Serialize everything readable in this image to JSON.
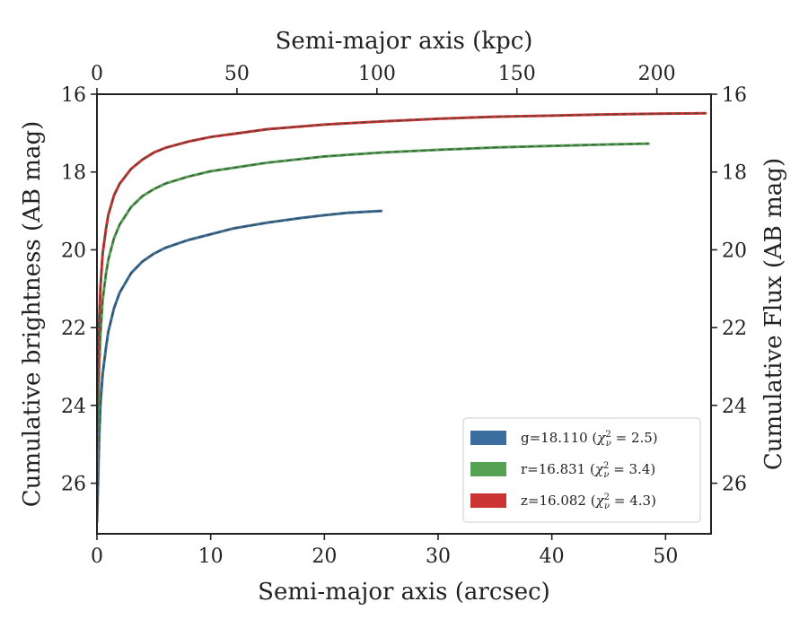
{
  "chart_data": {
    "type": "line",
    "xlabel": "Semi-major axis (arcsec)",
    "xlabel_top": "Semi-major axis (kpc)",
    "ylabel": "Cumulative brightness (AB mag)",
    "ylabel_right": "Cumulative Flux (AB mag)",
    "xlim": [
      0,
      54
    ],
    "ylim": [
      27.3,
      16
    ],
    "y_inverted": true,
    "x_ticks": [
      0,
      10,
      20,
      30,
      40,
      50
    ],
    "x_top_ticks": [
      0,
      50,
      100,
      150,
      200
    ],
    "x_top_kpc_per_arcsec": 4.062,
    "y_ticks": [
      16,
      18,
      20,
      22,
      24,
      26
    ],
    "grid": false,
    "legend_position": "lower-right",
    "series": [
      {
        "name": "g=18.110",
        "chi2": "2.5",
        "color": "#3b6e9e",
        "x": [
          0.0,
          0.1,
          0.2,
          0.3,
          0.5,
          0.8,
          1.0,
          1.5,
          2.0,
          3.0,
          4.0,
          5.0,
          6.0,
          8.0,
          10.0,
          12.0,
          15.0,
          18.0,
          20.0,
          22.0,
          25.0
        ],
        "y": [
          27.0,
          25.9,
          24.8,
          24.0,
          23.2,
          22.5,
          22.1,
          21.5,
          21.1,
          20.6,
          20.3,
          20.1,
          19.95,
          19.75,
          19.6,
          19.45,
          19.3,
          19.18,
          19.11,
          19.05,
          19.0
        ]
      },
      {
        "name": "r=16.831",
        "chi2": "3.4",
        "color": "#56a255",
        "x": [
          0.0,
          0.1,
          0.2,
          0.3,
          0.5,
          0.8,
          1.0,
          1.5,
          2.0,
          3.0,
          4.0,
          5.0,
          6.0,
          8.0,
          10.0,
          15.0,
          20.0,
          25.0,
          30.0,
          35.0,
          40.0,
          45.0,
          48.5
        ],
        "y": [
          25.8,
          24.1,
          23.0,
          22.2,
          21.3,
          20.6,
          20.25,
          19.7,
          19.35,
          18.9,
          18.62,
          18.44,
          18.3,
          18.12,
          17.98,
          17.76,
          17.6,
          17.5,
          17.43,
          17.37,
          17.33,
          17.29,
          17.27
        ]
      },
      {
        "name": "z=16.082",
        "chi2": "4.3",
        "color": "#cc3333",
        "x": [
          0.0,
          0.1,
          0.2,
          0.3,
          0.5,
          0.8,
          1.0,
          1.5,
          2.0,
          3.0,
          4.0,
          5.0,
          6.0,
          8.0,
          10.0,
          15.0,
          20.0,
          25.0,
          30.0,
          35.0,
          40.0,
          45.0,
          50.0,
          53.5
        ],
        "y": [
          25.0,
          22.9,
          21.8,
          21.0,
          20.1,
          19.45,
          19.1,
          18.6,
          18.3,
          17.92,
          17.68,
          17.5,
          17.38,
          17.22,
          17.1,
          16.9,
          16.78,
          16.7,
          16.63,
          16.58,
          16.55,
          16.52,
          16.5,
          16.49
        ]
      }
    ]
  },
  "legend": [
    {
      "label": "g=18.110",
      "chi": "2.5",
      "color": "#3b6e9e"
    },
    {
      "label": "r=16.831",
      "chi": "3.4",
      "color": "#56a255"
    },
    {
      "label": "z=16.082",
      "chi": "4.3",
      "color": "#cc3333"
    }
  ]
}
